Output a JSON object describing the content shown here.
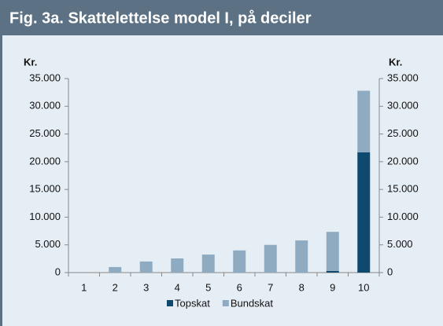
{
  "chart_data": {
    "type": "bar",
    "stacked": true,
    "title": "Fig. 3a. Skattelettelse model I, på deciler",
    "y_label": "Kr.",
    "y2_label": "Kr.",
    "categories": [
      "1",
      "2",
      "3",
      "4",
      "5",
      "6",
      "7",
      "8",
      "9",
      "10"
    ],
    "series": [
      {
        "name": "Topskat",
        "color": "#0f4a6e",
        "values": [
          0,
          0,
          0,
          0,
          0,
          0,
          0,
          0,
          300,
          21700
        ]
      },
      {
        "name": "Bundskat",
        "color": "#8eabc2",
        "values": [
          0,
          1000,
          2000,
          2550,
          3250,
          4000,
          5000,
          5800,
          7050,
          11100
        ]
      }
    ],
    "ylim": [
      0,
      35000
    ],
    "yticks": [
      0,
      {
        "value": 5000,
        "label": "5.000"
      },
      {
        "value": 10000,
        "label": "10.000"
      },
      {
        "value": 15000,
        "label": "15.000"
      },
      {
        "value": 20000,
        "label": "20.000"
      },
      {
        "value": 25000,
        "label": "25.000"
      },
      {
        "value": 30000,
        "label": "30.000"
      },
      {
        "value": 35000,
        "label": "35.000"
      }
    ],
    "y2lim": [
      0,
      35000
    ],
    "y2ticks": [
      0,
      {
        "value": 5000,
        "label": "5.000"
      },
      {
        "value": 10000,
        "label": "10.000"
      },
      {
        "value": 15000,
        "label": "15.000"
      },
      {
        "value": 20000,
        "label": "20.000"
      },
      {
        "value": 25000,
        "label": "25.000"
      },
      {
        "value": 30000,
        "label": "30.000"
      },
      {
        "value": 35000,
        "label": "35.000"
      }
    ],
    "legend": "bottom"
  }
}
